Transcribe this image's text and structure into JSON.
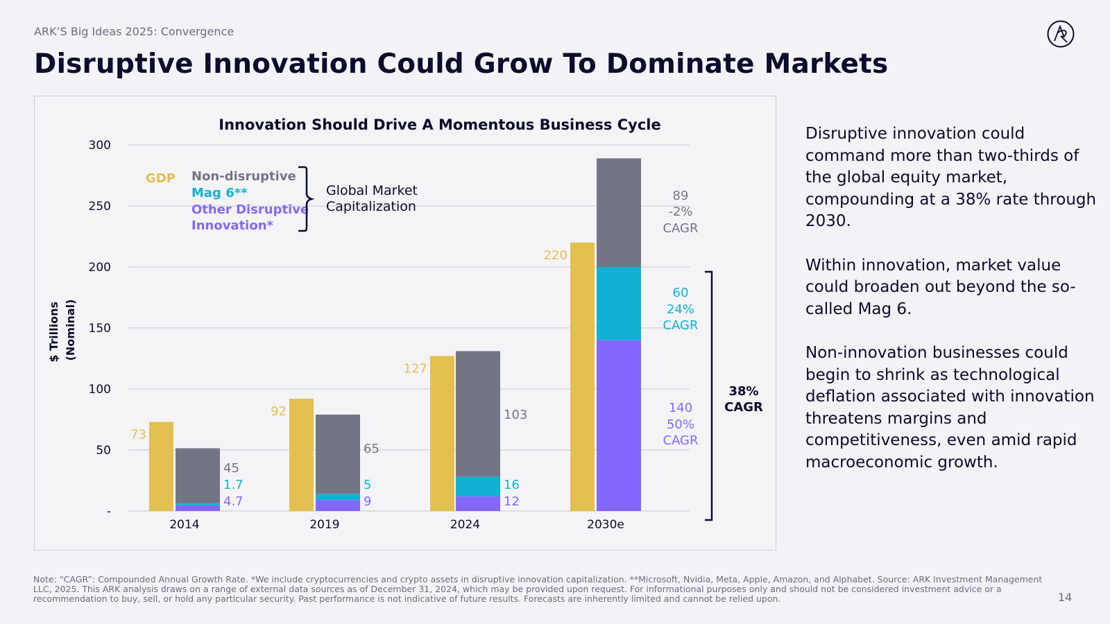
{
  "header": {
    "eyebrow": "ARK’S Big Ideas 2025: Convergence",
    "title": "Disruptive Innovation Could Grow To Dominate Markets"
  },
  "colors": {
    "gdp": "#e2c04f",
    "non_disruptive": "#737585",
    "mag6": "#10b2d4",
    "other_disruptive": "#8467fd",
    "grid": "#cfcfd6",
    "text": "#0b0b2a"
  },
  "chart_data": {
    "type": "bar",
    "title": "Innovation Should Drive A Momentous Business Cycle",
    "ylabel": "$ Trillions (Nominal)",
    "ylabel_lines": [
      "$ Trillions",
      "(Nominal)"
    ],
    "ylim": [
      0,
      300
    ],
    "yticks": [
      {
        "value": 0,
        "label": "-"
      },
      {
        "value": 50,
        "label": "50"
      },
      {
        "value": 100,
        "label": "100"
      },
      {
        "value": 150,
        "label": "150"
      },
      {
        "value": 200,
        "label": "200"
      },
      {
        "value": 250,
        "label": "250"
      },
      {
        "value": 300,
        "label": "300"
      }
    ],
    "grid": true,
    "categories": [
      "2014",
      "2019",
      "2024",
      "2030e"
    ],
    "gdp": {
      "name": "GDP",
      "values": [
        73,
        92,
        127,
        220
      ],
      "labels": [
        "73",
        "92",
        "127",
        "220"
      ]
    },
    "market_cap_series": [
      {
        "name": "Other Disruptive Innovation*",
        "key": "other_disruptive",
        "values": [
          4.7,
          9,
          12,
          140
        ],
        "labels": [
          "4.7",
          "9",
          "12",
          "140"
        ]
      },
      {
        "name": "Mag 6**",
        "key": "mag6",
        "values": [
          1.7,
          5,
          16,
          60
        ],
        "labels": [
          "1.7",
          "5",
          "16",
          "60"
        ]
      },
      {
        "name": "Non-disruptive",
        "key": "non_disruptive",
        "values": [
          45,
          65,
          103,
          89
        ],
        "labels": [
          "45",
          "65",
          "103",
          "89"
        ]
      }
    ],
    "legend": {
      "gdp": "GDP",
      "non_disruptive": "Non-disruptive",
      "mag6": "Mag 6**",
      "other_disruptive_1": "Other Disruptive",
      "other_disruptive_2": "Innovation*",
      "brace_label_1": "Global Market",
      "brace_label_2": "Capitalization",
      "placement": "top-left"
    },
    "annotations": {
      "non_disruptive_2030_cagr": [
        "-2%",
        "CAGR"
      ],
      "mag6_2030_cagr": [
        "24%",
        "CAGR"
      ],
      "other_2030_cagr": [
        "50%",
        "CAGR"
      ],
      "total_innovation_cagr": [
        "38%",
        "CAGR"
      ]
    }
  },
  "side_text": [
    "Disruptive innovation could command more than two-thirds of the global equity market, compounding at a 38% rate through 2030.",
    "Within innovation, market value could broaden out beyond the so-called Mag 6.",
    "Non-innovation businesses could begin to shrink as technological deflation associated with innovation threatens margins and competitiveness, even amid rapid macroeconomic growth."
  ],
  "footnote": "Note: “CAGR”: Compounded Annual Growth Rate. *We include cryptocurrencies and crypto assets in disruptive innovation capitalization. **Microsoft, Nvidia, Meta, Apple, Amazon, and Alphabet. Source: ARK Investment Management LLC, 2025. This ARK analysis draws on a range of external data sources as of December 31, 2024, which may be provided upon request. For informational purposes only and should not be considered investment advice or a recommendation to buy, sell, or hold any particular security. Past performance is not indicative of future results. Forecasts are inherently limited and cannot be relied upon.",
  "page_number": "14"
}
